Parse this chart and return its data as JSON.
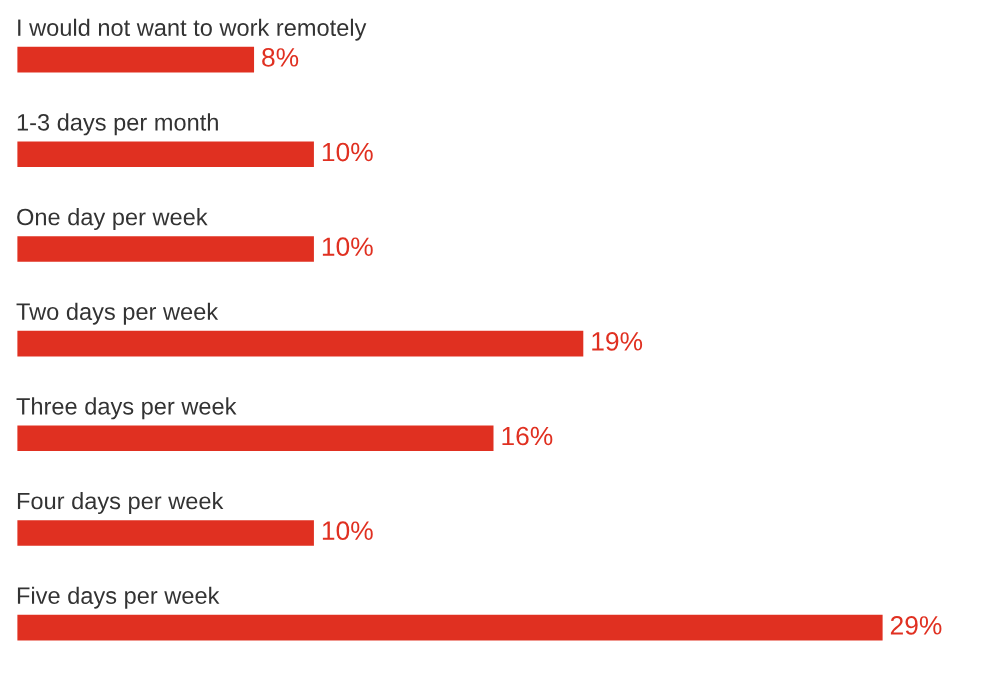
{
  "chart_data": {
    "type": "bar",
    "orientation": "horizontal",
    "categories": [
      "I would not want to work remotely",
      "1-3 days per month",
      "One day per week",
      "Two days per week",
      "Three days per week",
      "Four days per week",
      "Five days per week"
    ],
    "values": [
      8,
      10,
      10,
      19,
      16,
      10,
      29
    ],
    "value_labels": [
      "8%",
      "10%",
      "10%",
      "19%",
      "16%",
      "10%",
      "29%"
    ],
    "color": "#e03021"
  }
}
